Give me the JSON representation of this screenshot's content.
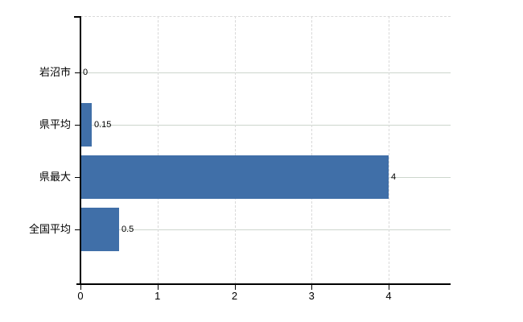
{
  "chart_data": {
    "type": "bar",
    "orientation": "horizontal",
    "title": "",
    "xlabel": "",
    "ylabel": "",
    "categories": [
      "岩沼市",
      "県平均",
      "県最大",
      "全国平均"
    ],
    "values": [
      0,
      0.15,
      4,
      0.5
    ],
    "data_labels": [
      "0",
      "0.15",
      "4",
      "0.5"
    ],
    "x_ticks": [
      0,
      1,
      2,
      3,
      4
    ],
    "x_tick_labels": [
      "0",
      "1",
      "2",
      "3",
      "4"
    ],
    "xlim": [
      0,
      4.8
    ],
    "grid": true,
    "legend": "none",
    "colors": {
      "bar": "#406fa8",
      "horizontal_grid": "#cdd6cd",
      "vertical_grid": "#d9d9d9",
      "axis": "#000000",
      "text": "#000000",
      "background": "#ffffff"
    }
  }
}
